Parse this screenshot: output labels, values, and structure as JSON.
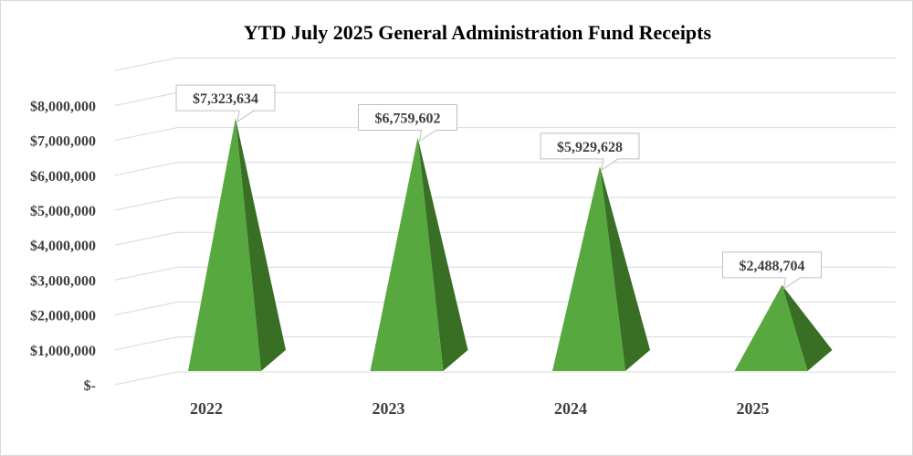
{
  "chart_data": {
    "type": "bar",
    "style": "3d-pyramid",
    "title": "YTD July 2025 General Administration Fund Receipts",
    "categories": [
      "2022",
      "2023",
      "2024",
      "2025"
    ],
    "values": [
      7323634,
      6759602,
      5929628,
      2488704
    ],
    "data_labels": [
      "$7,323,634",
      "$6,759,602",
      "$5,929,628",
      "$2,488,704"
    ],
    "y_tick_labels": [
      "$-",
      "$1,000,000",
      "$2,000,000",
      "$3,000,000",
      "$4,000,000",
      "$5,000,000",
      "$6,000,000",
      "$7,000,000",
      "$8,000,000"
    ],
    "ylim": [
      0,
      9000000
    ],
    "grid": true,
    "legend": "none",
    "colors": {
      "front_face": "#58a840",
      "side_face": "#386f24",
      "gridline": "#d9d9d9"
    }
  }
}
